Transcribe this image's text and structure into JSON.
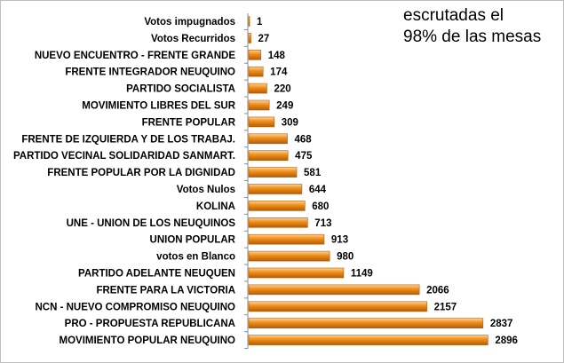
{
  "chart_data": {
    "type": "bar",
    "orientation": "horizontal",
    "title": "",
    "annotation": [
      "escrutadas el",
      "98% de las mesas"
    ],
    "xlabel": "",
    "ylabel": "",
    "xlim": [
      0,
      3000
    ],
    "grid": false,
    "legend": "none",
    "bar_color": "#f0921e",
    "bar_color_dark": "#b85a04",
    "bar_color_light": "#fcd49c",
    "categories": [
      "Votos impugnados",
      "Votos Recurridos",
      "NUEVO ENCUENTRO - FRENTE GRANDE",
      "FRENTE INTEGRADOR NEUQUINO",
      "PARTIDO SOCIALISTA",
      "MOVIMIENTO LIBRES DEL SUR",
      "FRENTE POPULAR",
      "FRENTE DE IZQUIERDA Y DE LOS TRABAJ.",
      "PARTIDO VECINAL SOLIDARIDAD SANMART.",
      "FRENTE POPULAR POR LA DIGNIDAD",
      "Votos Nulos",
      "KOLINA",
      "UNE - UNION DE LOS NEUQUINOS",
      "UNION POPULAR",
      "votos en Blanco",
      "PARTIDO ADELANTE NEUQUEN",
      "FRENTE PARA LA VICTORIA",
      "NCN - NUEVO  COMPROMISO NEUQUINO",
      "PRO - PROPUESTA REPUBLICANA",
      "MOVIMIENTO POPULAR NEUQUINO"
    ],
    "values": [
      1,
      27,
      148,
      174,
      220,
      249,
      309,
      468,
      475,
      581,
      644,
      680,
      713,
      913,
      980,
      1149,
      2066,
      2157,
      2837,
      2896
    ]
  }
}
